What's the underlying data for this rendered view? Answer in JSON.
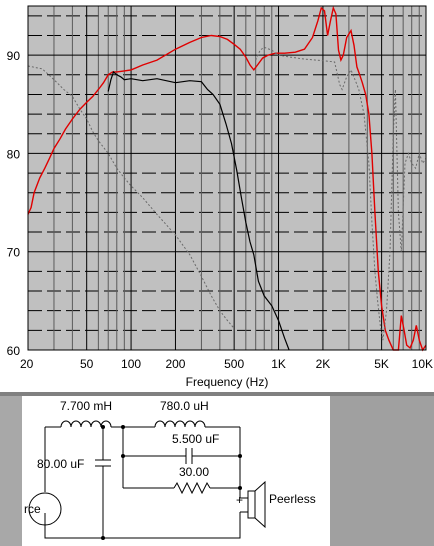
{
  "chart_data": {
    "type": "line",
    "xlabel": "Frequency (Hz)",
    "ylabel": "",
    "xscale": "log",
    "xlim": [
      20,
      10000
    ],
    "ylim": [
      60,
      95
    ],
    "x_tick_labels": [
      "20",
      "50",
      "100",
      "200",
      "500",
      "1K",
      "2K",
      "5K",
      "10K"
    ],
    "x_tick_values": [
      20,
      50,
      100,
      200,
      500,
      1000,
      2000,
      5000,
      10000
    ],
    "y_tick_labels": [
      "60",
      "70",
      "80",
      "90"
    ],
    "y_tick_values": [
      60,
      70,
      80,
      90
    ],
    "grid": true,
    "colors": {
      "plot_bg": "#c0c0c0",
      "major_grid": "#000000",
      "minor_grid": "#000000",
      "red": "#e00000",
      "black": "#000000",
      "dotted": "#6a6a6a"
    },
    "series": [
      {
        "style": "red",
        "points": [
          [
            20,
            73.8
          ],
          [
            21,
            74.5
          ],
          [
            22,
            76
          ],
          [
            24,
            77.5
          ],
          [
            26,
            78.5
          ],
          [
            28,
            79.5
          ],
          [
            30,
            80.5
          ],
          [
            33,
            81.5
          ],
          [
            36,
            82.5
          ],
          [
            40,
            83.5
          ],
          [
            45,
            84.5
          ],
          [
            50,
            85.2
          ],
          [
            55,
            85.8
          ],
          [
            60,
            86.5
          ],
          [
            65,
            87.2
          ],
          [
            70,
            88
          ],
          [
            75,
            88.3
          ],
          [
            80,
            88.3
          ],
          [
            90,
            88.4
          ],
          [
            100,
            88.5
          ],
          [
            120,
            89
          ],
          [
            150,
            89.5
          ],
          [
            200,
            90.6
          ],
          [
            250,
            91.3
          ],
          [
            300,
            91.8
          ],
          [
            350,
            92
          ],
          [
            400,
            91.9
          ],
          [
            450,
            91.6
          ],
          [
            500,
            91.1
          ],
          [
            550,
            90.6
          ],
          [
            600,
            89.8
          ],
          [
            640,
            89
          ],
          [
            680,
            88.5
          ],
          [
            720,
            89
          ],
          [
            780,
            89.7
          ],
          [
            850,
            90
          ],
          [
            950,
            90.2
          ],
          [
            1100,
            90.2
          ],
          [
            1300,
            90.3
          ],
          [
            1500,
            90.6
          ],
          [
            1700,
            91.8
          ],
          [
            1850,
            93.5
          ],
          [
            1950,
            94.8
          ],
          [
            2050,
            94.5
          ],
          [
            2150,
            92
          ],
          [
            2250,
            93.5
          ],
          [
            2350,
            94.8
          ],
          [
            2450,
            94.2
          ],
          [
            2550,
            90.5
          ],
          [
            2650,
            89.5
          ],
          [
            2750,
            90
          ],
          [
            2900,
            91.8
          ],
          [
            3100,
            92.5
          ],
          [
            3250,
            91
          ],
          [
            3400,
            88.8
          ],
          [
            3550,
            88
          ],
          [
            3700,
            87.2
          ],
          [
            3900,
            86
          ],
          [
            4100,
            84
          ],
          [
            4300,
            80
          ],
          [
            4500,
            74
          ],
          [
            4750,
            68
          ],
          [
            5000,
            64.5
          ],
          [
            5300,
            62
          ],
          [
            5600,
            61
          ],
          [
            6000,
            60
          ],
          [
            6500,
            60
          ],
          [
            6800,
            63.5
          ],
          [
            7100,
            62
          ],
          [
            7400,
            60.5
          ],
          [
            7800,
            60.2
          ],
          [
            8200,
            61
          ],
          [
            8600,
            62.5
          ],
          [
            9000,
            61
          ],
          [
            9500,
            60
          ],
          [
            10000,
            60.5
          ]
        ]
      },
      {
        "style": "black",
        "points": [
          [
            70,
            86.3
          ],
          [
            73,
            87.5
          ],
          [
            76,
            88.3
          ],
          [
            80,
            88
          ],
          [
            85,
            87.8
          ],
          [
            90,
            87.5
          ],
          [
            100,
            87.6
          ],
          [
            120,
            87.4
          ],
          [
            150,
            87.6
          ],
          [
            200,
            87.2
          ],
          [
            250,
            87.4
          ],
          [
            300,
            87.3
          ],
          [
            330,
            86.5
          ],
          [
            360,
            86
          ],
          [
            400,
            85
          ],
          [
            440,
            83
          ],
          [
            480,
            81
          ],
          [
            520,
            78.3
          ],
          [
            560,
            75.5
          ],
          [
            600,
            73
          ],
          [
            640,
            71
          ],
          [
            680,
            69.7
          ],
          [
            730,
            67
          ],
          [
            800,
            65.5
          ],
          [
            900,
            64.5
          ],
          [
            1000,
            63
          ],
          [
            1100,
            61.2
          ],
          [
            1180,
            60
          ]
        ]
      },
      {
        "style": "dotted",
        "points": [
          [
            20,
            88.9
          ],
          [
            25,
            88.6
          ],
          [
            30,
            87.5
          ],
          [
            35,
            86.5
          ],
          [
            40,
            85.8
          ],
          [
            45,
            84.5
          ],
          [
            50,
            83.5
          ],
          [
            55,
            82.2
          ],
          [
            60,
            81.3
          ],
          [
            70,
            80
          ],
          [
            80,
            78.5
          ],
          [
            90,
            77.5
          ],
          [
            100,
            76.7
          ],
          [
            120,
            75.5
          ],
          [
            150,
            73.8
          ],
          [
            200,
            71.7
          ],
          [
            250,
            69.7
          ],
          [
            300,
            67.5
          ],
          [
            350,
            65.5
          ],
          [
            400,
            64
          ],
          [
            450,
            63
          ],
          [
            500,
            62.2
          ]
        ]
      },
      {
        "style": "dotted",
        "points": [
          [
            700,
            89.5
          ],
          [
            750,
            90.5
          ],
          [
            800,
            90.8
          ],
          [
            900,
            90.5
          ],
          [
            1000,
            90
          ],
          [
            1200,
            89.8
          ],
          [
            1500,
            89.6
          ],
          [
            1800,
            89.5
          ],
          [
            2100,
            89.4
          ],
          [
            2400,
            89.3
          ],
          [
            2600,
            87
          ],
          [
            2700,
            86.5
          ],
          [
            2900,
            87.8
          ],
          [
            3100,
            88.5
          ],
          [
            3300,
            87.5
          ],
          [
            3500,
            86.5
          ],
          [
            3800,
            84
          ],
          [
            4100,
            79
          ],
          [
            4300,
            73
          ],
          [
            4500,
            68
          ],
          [
            4700,
            65
          ],
          [
            4900,
            62.5
          ],
          [
            5100,
            61
          ],
          [
            5400,
            64
          ],
          [
            5700,
            70
          ],
          [
            6000,
            82
          ],
          [
            6200,
            86.5
          ],
          [
            6500,
            74
          ],
          [
            6800,
            70
          ],
          [
            7200,
            79
          ],
          [
            7600,
            80
          ],
          [
            8000,
            79
          ],
          [
            8500,
            78.5
          ],
          [
            9000,
            80
          ],
          [
            9500,
            79
          ],
          [
            10000,
            79.5
          ]
        ]
      }
    ]
  },
  "schematic": {
    "labels": {
      "inductor_1": "7.700 mH",
      "inductor_2": "780.0 uH",
      "capacitor_parallel": "5.500 uF",
      "capacitor_shunt": "80.00 uF",
      "resistor": "30.00",
      "source": "rce",
      "plus": "+",
      "driver": "Peerless"
    }
  }
}
